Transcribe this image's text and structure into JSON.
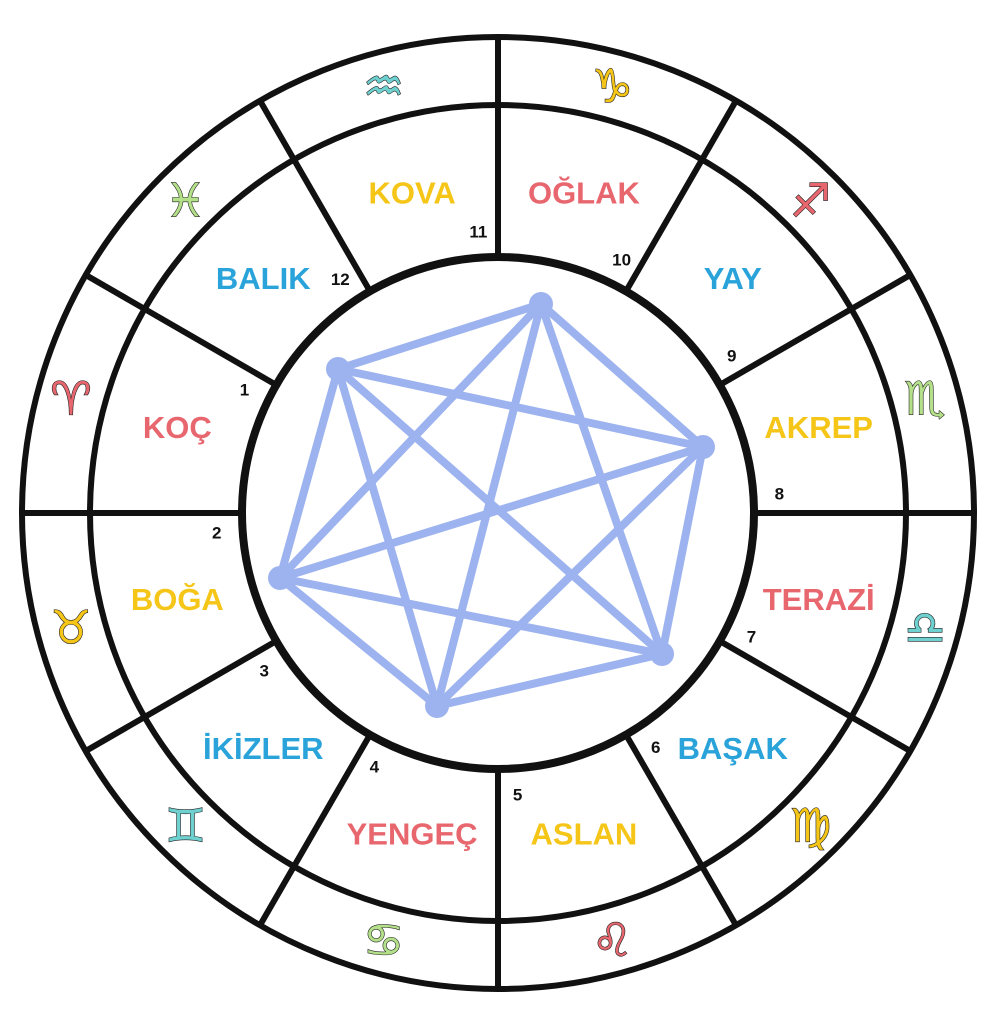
{
  "signs": [
    {
      "name": "KOÇ",
      "house": "1",
      "color": "#e8676f",
      "glyph": "♈",
      "glyph_name": "aries-icon",
      "glyph_color": "#e8676f"
    },
    {
      "name": "BOĞA",
      "house": "2",
      "color": "#f5c518",
      "glyph": "♉",
      "glyph_name": "taurus-icon",
      "glyph_color": "#f5c518"
    },
    {
      "name": "İKİZLER",
      "house": "3",
      "color": "#29a3d9",
      "glyph": "♊",
      "glyph_name": "gemini-icon",
      "glyph_color": "#6fd0d0"
    },
    {
      "name": "YENGEÇ",
      "house": "4",
      "color": "#e8676f",
      "glyph": "♋",
      "glyph_name": "cancer-icon",
      "glyph_color": "#b4e08a"
    },
    {
      "name": "ASLAN",
      "house": "5",
      "color": "#f5c518",
      "glyph": "♌",
      "glyph_name": "leo-icon",
      "glyph_color": "#e8676f"
    },
    {
      "name": "BAŞAK",
      "house": "6",
      "color": "#29a3d9",
      "glyph": "♍",
      "glyph_name": "virgo-icon",
      "glyph_color": "#f5c518"
    },
    {
      "name": "TERAZİ",
      "house": "7",
      "color": "#e8676f",
      "glyph": "♎",
      "glyph_name": "libra-icon",
      "glyph_color": "#6fd0d0"
    },
    {
      "name": "AKREP",
      "house": "8",
      "color": "#f5c518",
      "glyph": "♏",
      "glyph_name": "scorpio-icon",
      "glyph_color": "#b4e08a"
    },
    {
      "name": "YAY",
      "house": "9",
      "color": "#29a3d9",
      "glyph": "♐",
      "glyph_name": "sagittarius-icon",
      "glyph_color": "#e8676f"
    },
    {
      "name": "OĞLAK",
      "house": "10",
      "color": "#e8676f",
      "glyph": "♑",
      "glyph_name": "capricorn-icon",
      "glyph_color": "#f5c518"
    },
    {
      "name": "KOVA",
      "house": "11",
      "color": "#f5c518",
      "glyph": "♒",
      "glyph_name": "aquarius-icon",
      "glyph_color": "#6fd0d0"
    },
    {
      "name": "BALIK",
      "house": "12",
      "color": "#29a3d9",
      "glyph": "♓",
      "glyph_name": "pisces-icon",
      "glyph_color": "#b4e08a"
    }
  ],
  "star_color": "#9db3ef",
  "ring_color": "#111111"
}
